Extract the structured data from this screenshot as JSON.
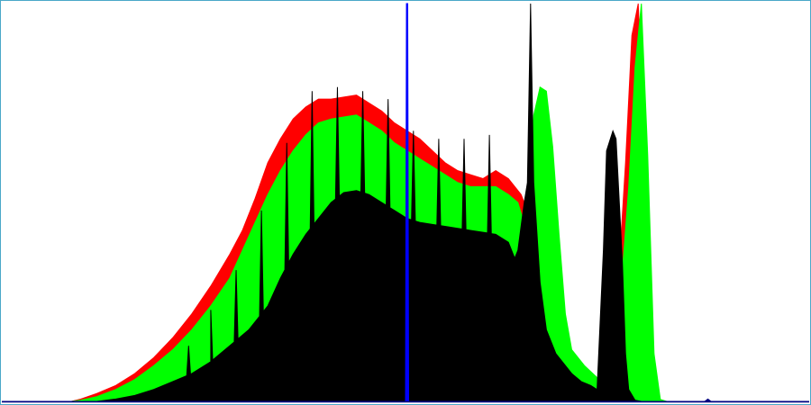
{
  "chart_data": {
    "type": "area",
    "title": "",
    "xlabel": "",
    "ylabel": "",
    "xlim": [
      0,
      255
    ],
    "ylim": [
      0,
      100
    ],
    "grid": false,
    "legend": "none",
    "baseline_color": "#000080",
    "series": [
      {
        "color": "#ff0000",
        "points": [
          [
            0,
            0
          ],
          [
            22,
            0
          ],
          [
            25,
            0.6
          ],
          [
            30,
            2
          ],
          [
            36,
            4
          ],
          [
            42,
            7
          ],
          [
            48,
            11
          ],
          [
            54,
            16
          ],
          [
            60,
            22
          ],
          [
            66,
            29
          ],
          [
            72,
            37
          ],
          [
            76,
            43
          ],
          [
            80,
            51
          ],
          [
            84,
            60
          ],
          [
            88,
            66
          ],
          [
            92,
            71
          ],
          [
            96,
            74
          ],
          [
            100,
            76
          ],
          [
            104,
            76
          ],
          [
            108,
            76.5
          ],
          [
            112,
            77
          ],
          [
            116,
            75
          ],
          [
            120,
            73
          ],
          [
            124,
            70
          ],
          [
            128,
            68
          ],
          [
            132,
            66
          ],
          [
            136,
            63
          ],
          [
            140,
            60
          ],
          [
            144,
            58
          ],
          [
            148,
            57
          ],
          [
            152,
            56
          ],
          [
            156,
            58
          ],
          [
            160,
            56
          ],
          [
            164,
            52
          ],
          [
            166,
            48
          ],
          [
            168,
            70
          ],
          [
            170,
            79
          ],
          [
            172,
            60
          ],
          [
            174,
            30
          ],
          [
            176,
            16
          ],
          [
            180,
            10
          ],
          [
            184,
            7
          ],
          [
            188,
            4
          ],
          [
            190,
            6
          ],
          [
            192,
            22
          ],
          [
            195,
            34
          ],
          [
            197,
            60
          ],
          [
            199,
            92
          ],
          [
            201,
            100
          ],
          [
            203,
            60
          ],
          [
            205,
            10
          ],
          [
            207,
            0.5
          ],
          [
            209,
            0
          ],
          [
            255,
            0
          ]
        ]
      },
      {
        "color": "#00ff00",
        "points": [
          [
            0,
            0
          ],
          [
            22,
            0
          ],
          [
            25,
            0.3
          ],
          [
            30,
            1.2
          ],
          [
            36,
            3
          ],
          [
            42,
            5.5
          ],
          [
            48,
            9
          ],
          [
            54,
            13
          ],
          [
            60,
            18
          ],
          [
            66,
            24
          ],
          [
            72,
            31
          ],
          [
            76,
            38
          ],
          [
            80,
            45
          ],
          [
            84,
            52
          ],
          [
            88,
            58
          ],
          [
            92,
            63
          ],
          [
            96,
            67
          ],
          [
            100,
            70
          ],
          [
            104,
            71
          ],
          [
            108,
            71.5
          ],
          [
            112,
            72
          ],
          [
            116,
            70
          ],
          [
            120,
            68
          ],
          [
            124,
            65
          ],
          [
            128,
            63
          ],
          [
            132,
            61
          ],
          [
            136,
            59
          ],
          [
            140,
            57
          ],
          [
            144,
            55
          ],
          [
            148,
            54
          ],
          [
            152,
            54
          ],
          [
            156,
            54
          ],
          [
            160,
            52
          ],
          [
            163,
            50
          ],
          [
            166,
            42
          ],
          [
            168,
            72
          ],
          [
            170,
            79
          ],
          [
            172,
            78
          ],
          [
            174,
            64
          ],
          [
            176,
            42
          ],
          [
            178,
            22
          ],
          [
            180,
            13
          ],
          [
            184,
            9
          ],
          [
            188,
            6
          ],
          [
            190,
            4
          ],
          [
            192,
            10
          ],
          [
            195,
            22
          ],
          [
            198,
            54
          ],
          [
            200,
            84
          ],
          [
            202,
            100
          ],
          [
            204,
            62
          ],
          [
            206,
            12
          ],
          [
            208,
            0.5
          ],
          [
            210,
            0
          ],
          [
            255,
            0
          ]
        ]
      },
      {
        "color": "#000000",
        "points": [
          [
            0,
            0
          ],
          [
            30,
            0
          ],
          [
            36,
            0.6
          ],
          [
            42,
            1.5
          ],
          [
            48,
            3
          ],
          [
            54,
            5
          ],
          [
            60,
            7
          ],
          [
            66,
            10
          ],
          [
            72,
            14
          ],
          [
            78,
            18
          ],
          [
            84,
            24
          ],
          [
            88,
            31
          ],
          [
            92,
            37
          ],
          [
            96,
            42
          ],
          [
            100,
            46
          ],
          [
            104,
            50
          ],
          [
            108,
            52.5
          ],
          [
            112,
            53
          ],
          [
            116,
            52
          ],
          [
            120,
            50
          ],
          [
            124,
            48
          ],
          [
            128,
            46
          ],
          [
            132,
            45
          ],
          [
            136,
            44.5
          ],
          [
            140,
            44
          ],
          [
            144,
            43.5
          ],
          [
            148,
            43
          ],
          [
            152,
            42.5
          ],
          [
            156,
            42
          ],
          [
            160,
            40
          ],
          [
            162,
            36
          ],
          [
            163,
            38
          ],
          [
            165,
            50
          ],
          [
            166,
            55
          ],
          [
            167,
            100
          ],
          [
            168,
            55
          ],
          [
            170,
            30
          ],
          [
            172,
            18
          ],
          [
            175,
            12
          ],
          [
            180,
            7
          ],
          [
            183,
            5
          ],
          [
            186,
            4
          ],
          [
            188,
            3
          ],
          [
            190,
            38
          ],
          [
            191,
            63
          ],
          [
            193,
            68
          ],
          [
            194,
            66
          ],
          [
            196,
            35
          ],
          [
            197,
            12
          ],
          [
            198,
            3
          ],
          [
            200,
            0.3
          ],
          [
            202,
            0
          ],
          [
            255,
            0
          ]
        ],
        "spikes": [
          [
            59,
            14
          ],
          [
            66,
            23
          ],
          [
            74,
            33
          ],
          [
            82,
            48
          ],
          [
            90,
            65
          ],
          [
            98,
            78
          ],
          [
            106,
            79
          ],
          [
            114,
            78
          ],
          [
            122,
            76
          ],
          [
            130,
            68
          ],
          [
            138,
            66
          ],
          [
            146,
            66
          ],
          [
            154,
            67
          ]
        ]
      },
      {
        "color": "#0000ff",
        "points": [
          [
            0,
            0
          ],
          [
            127.5,
            0
          ],
          [
            127.8,
            100
          ],
          [
            128.2,
            100
          ],
          [
            128.5,
            0
          ],
          [
            255,
            0
          ]
        ]
      },
      {
        "color": "#000080",
        "points": [
          [
            0,
            0
          ],
          [
            222,
            0
          ],
          [
            223,
            0.6
          ],
          [
            224,
            0
          ],
          [
            255,
            0
          ]
        ]
      }
    ]
  }
}
